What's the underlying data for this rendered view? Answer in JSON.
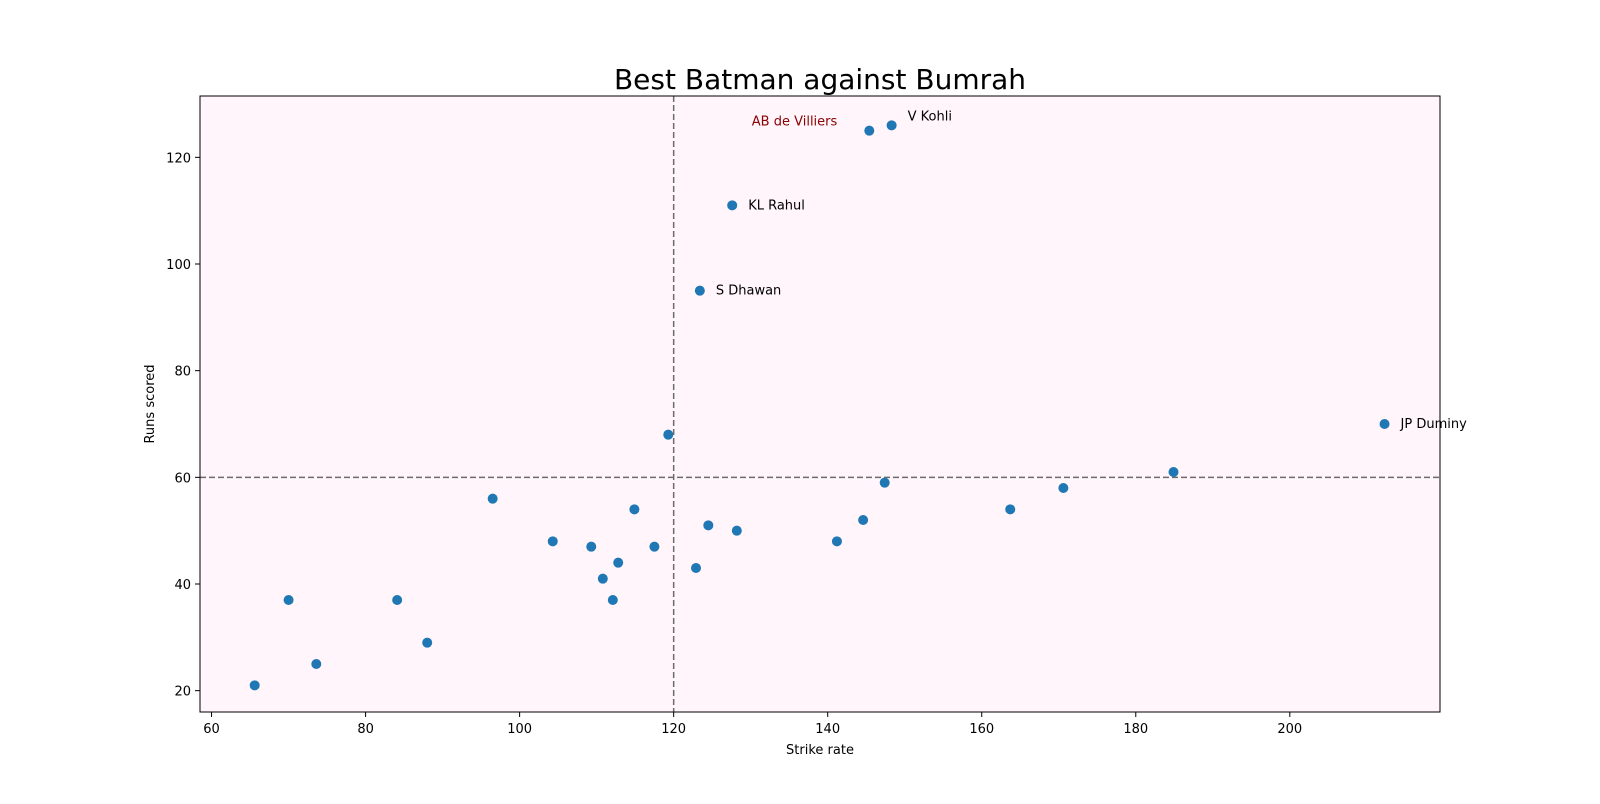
{
  "chart_data": {
    "type": "scatter",
    "title": "Best Batman against Bumrah",
    "xlabel": "Strike rate",
    "ylabel": "Runs scored",
    "xlim": [
      58.5,
      219.5
    ],
    "ylim": [
      16,
      131.5
    ],
    "xticks": [
      60,
      80,
      100,
      120,
      140,
      160,
      180,
      200
    ],
    "yticks": [
      20,
      40,
      60,
      80,
      100,
      120
    ],
    "grid": false,
    "colors": {
      "point": "#1f77b4",
      "plot_background": "#fff5fb",
      "reference_line": "#6b6b6b",
      "highlight_label": "#8b0000"
    },
    "reference_lines": {
      "vertical_x": 120,
      "horizontal_y": 60
    },
    "points": [
      {
        "x": 65.6,
        "y": 21
      },
      {
        "x": 70.0,
        "y": 37
      },
      {
        "x": 73.6,
        "y": 25
      },
      {
        "x": 84.1,
        "y": 37
      },
      {
        "x": 88.0,
        "y": 29
      },
      {
        "x": 96.5,
        "y": 56
      },
      {
        "x": 104.3,
        "y": 48
      },
      {
        "x": 109.3,
        "y": 47
      },
      {
        "x": 110.8,
        "y": 41
      },
      {
        "x": 112.1,
        "y": 37
      },
      {
        "x": 112.8,
        "y": 44
      },
      {
        "x": 114.9,
        "y": 54
      },
      {
        "x": 117.5,
        "y": 47
      },
      {
        "x": 119.3,
        "y": 68
      },
      {
        "x": 122.9,
        "y": 43
      },
      {
        "x": 123.4,
        "y": 95,
        "label": "S Dhawan"
      },
      {
        "x": 124.5,
        "y": 51
      },
      {
        "x": 127.6,
        "y": 111,
        "label": "KL Rahul"
      },
      {
        "x": 128.2,
        "y": 50
      },
      {
        "x": 141.2,
        "y": 48
      },
      {
        "x": 144.6,
        "y": 52
      },
      {
        "x": 145.4,
        "y": 125,
        "label": "AB de Villiers",
        "label_side": "left",
        "highlight": true
      },
      {
        "x": 147.4,
        "y": 59
      },
      {
        "x": 148.3,
        "y": 126,
        "label": "V Kohli"
      },
      {
        "x": 163.7,
        "y": 54
      },
      {
        "x": 170.6,
        "y": 58
      },
      {
        "x": 184.9,
        "y": 61
      },
      {
        "x": 212.3,
        "y": 70,
        "label": "JP Duminy"
      }
    ]
  }
}
